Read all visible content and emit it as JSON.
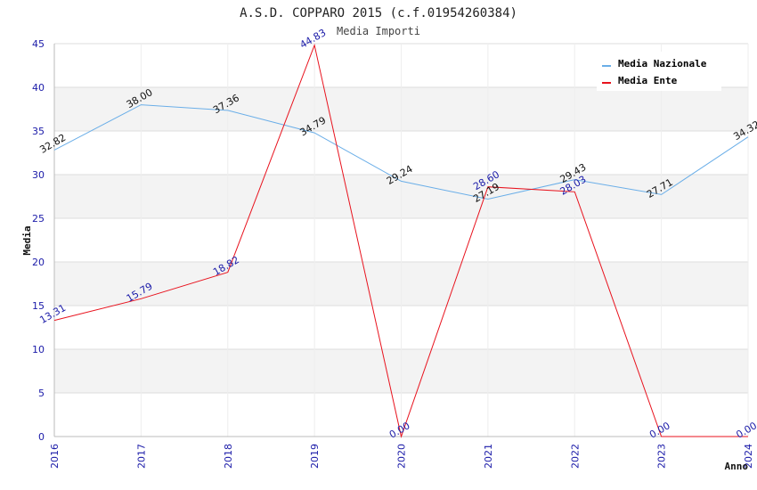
{
  "chart_data": {
    "type": "line",
    "title": "A.S.D. COPPARO 2015 (c.f.01954260384)",
    "subtitle": "Media Importi",
    "xlabel": "Anno",
    "ylabel": "Media",
    "ylim": [
      0,
      45
    ],
    "yticks": [
      0,
      5,
      10,
      15,
      20,
      25,
      30,
      35,
      40,
      45
    ],
    "categories": [
      "2016",
      "2017",
      "2018",
      "2019",
      "2020",
      "2021",
      "2022",
      "2023",
      "2024"
    ],
    "grid": true,
    "legend_position": "top-right",
    "series": [
      {
        "name": "Media Nazionale",
        "color": "#6aaee8",
        "label_color": "#111111",
        "values": [
          32.82,
          38.0,
          37.36,
          34.79,
          29.24,
          27.19,
          29.43,
          27.71,
          34.32
        ],
        "labels": [
          "32.82",
          "38.00",
          "37.36",
          "34.79",
          "29.24",
          "27.19",
          "29.43",
          "27.71",
          "34.32"
        ]
      },
      {
        "name": "Media Ente",
        "color": "#e8121d",
        "label_color": "#1a1aa8",
        "values": [
          13.31,
          15.79,
          18.82,
          44.83,
          0.0,
          28.6,
          28.03,
          0.0,
          0.0
        ],
        "labels": [
          "13.31",
          "15.79",
          "18.82",
          "44.83",
          "0.00",
          "28.60",
          "28.03",
          "0.00",
          "0.00"
        ]
      }
    ]
  }
}
